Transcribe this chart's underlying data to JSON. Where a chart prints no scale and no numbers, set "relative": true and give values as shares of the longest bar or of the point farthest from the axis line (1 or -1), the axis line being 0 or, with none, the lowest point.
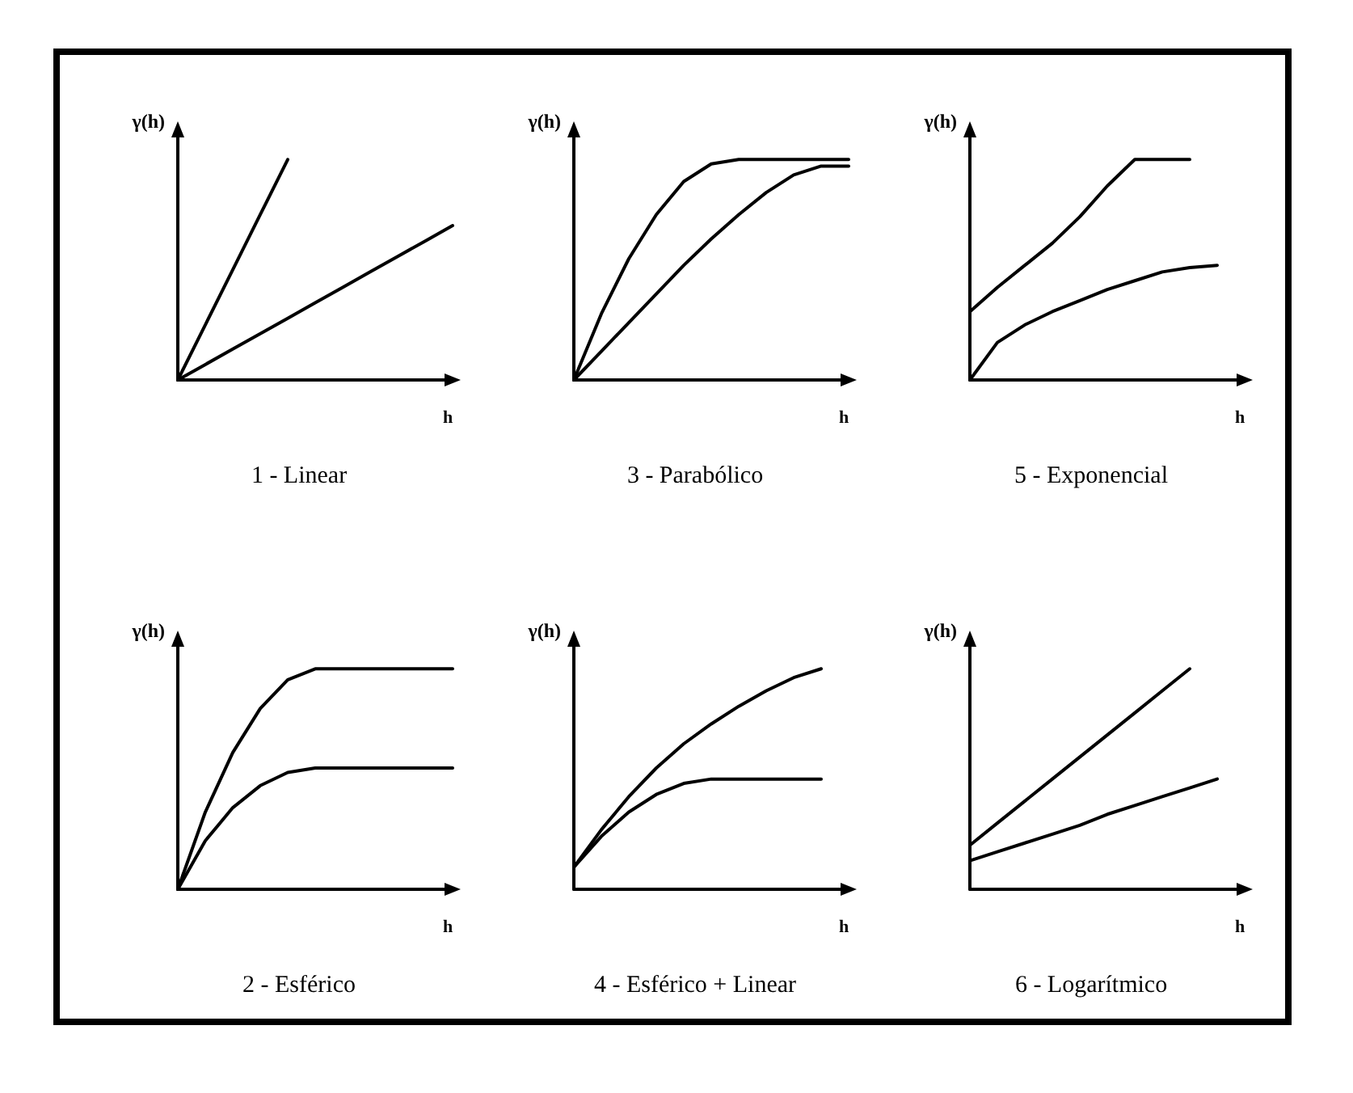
{
  "chart_data": [
    {
      "type": "line",
      "title": "1 - Linear",
      "xlabel": "h",
      "ylabel": "γ(h)",
      "relative": true,
      "marker": "none",
      "line_style": "solid",
      "categories": [
        null,
        null,
        null,
        null,
        null,
        null,
        null,
        null,
        null,
        null,
        null
      ],
      "series": [
        {
          "color": "#000000",
          "values": [
            0,
            0.25,
            0.5,
            0.75,
            1,
            null,
            null,
            null,
            null,
            null,
            null
          ]
        },
        {
          "color": "#000000",
          "values": [
            0,
            0.07,
            0.14,
            0.21,
            0.28,
            0.35,
            0.42,
            0.49,
            0.56,
            0.63,
            0.7
          ]
        }
      ]
    },
    {
      "type": "line",
      "title": "3 - Parabólico",
      "xlabel": "h",
      "ylabel": "γ(h)",
      "relative": true,
      "marker": "none",
      "line_style": "solid",
      "categories": [
        null,
        null,
        null,
        null,
        null,
        null,
        null,
        null,
        null,
        null,
        null
      ],
      "series": [
        {
          "color": "#000000",
          "values": [
            0,
            0.3,
            0.55,
            0.75,
            0.9,
            0.98,
            1,
            1,
            1,
            1,
            1
          ]
        },
        {
          "color": "#000000",
          "values": [
            0,
            0.13,
            0.26,
            0.39,
            0.52,
            0.64,
            0.75,
            0.85,
            0.93,
            0.97,
            0.97
          ]
        }
      ]
    },
    {
      "type": "line",
      "title": "5 - Exponencial",
      "xlabel": "h",
      "ylabel": "γ(h)",
      "relative": true,
      "marker": "none",
      "line_style": "solid",
      "categories": [
        null,
        null,
        null,
        null,
        null,
        null,
        null,
        null,
        null,
        null,
        null
      ],
      "series": [
        {
          "color": "#000000",
          "values": [
            0.31,
            0.42,
            0.52,
            0.62,
            0.74,
            0.88,
            1,
            1,
            1,
            null,
            null
          ]
        },
        {
          "color": "#000000",
          "values": [
            0,
            0.17,
            0.25,
            0.31,
            0.36,
            0.41,
            0.45,
            0.49,
            0.51,
            0.52,
            null
          ]
        }
      ]
    },
    {
      "type": "line",
      "title": "2 - Esférico",
      "xlabel": "h",
      "ylabel": "γ(h)",
      "relative": true,
      "marker": "none",
      "line_style": "solid",
      "categories": [
        null,
        null,
        null,
        null,
        null,
        null,
        null,
        null,
        null,
        null,
        null
      ],
      "series": [
        {
          "color": "#000000",
          "values": [
            0,
            0.35,
            0.62,
            0.82,
            0.95,
            1,
            1,
            1,
            1,
            1,
            1
          ]
        },
        {
          "color": "#000000",
          "values": [
            0,
            0.22,
            0.37,
            0.47,
            0.53,
            0.55,
            0.55,
            0.55,
            0.55,
            0.55,
            0.55
          ]
        }
      ]
    },
    {
      "type": "line",
      "title": "4 - Esférico + Linear",
      "xlabel": "h",
      "ylabel": "γ(h)",
      "relative": true,
      "marker": "none",
      "line_style": "solid",
      "categories": [
        null,
        null,
        null,
        null,
        null,
        null,
        null,
        null,
        null,
        null,
        null
      ],
      "series": [
        {
          "color": "#000000",
          "values": [
            0.1,
            0.27,
            0.42,
            0.55,
            0.66,
            0.75,
            0.83,
            0.9,
            0.96,
            1,
            null
          ]
        },
        {
          "color": "#000000",
          "values": [
            0.1,
            0.24,
            0.35,
            0.43,
            0.48,
            0.5,
            0.5,
            0.5,
            0.5,
            0.5,
            null
          ]
        }
      ]
    },
    {
      "type": "line",
      "title": "6 - Logarítmico",
      "xlabel": "h",
      "ylabel": "γ(h)",
      "relative": true,
      "marker": "none",
      "line_style": "solid",
      "categories": [
        null,
        null,
        null,
        null,
        null,
        null,
        null,
        null,
        null,
        null,
        null
      ],
      "series": [
        {
          "color": "#000000",
          "values": [
            0.2,
            0.3,
            0.4,
            0.5,
            0.6,
            0.7,
            0.8,
            0.9,
            1,
            null,
            null
          ]
        },
        {
          "color": "#000000",
          "values": [
            0.13,
            0.17,
            0.21,
            0.25,
            0.29,
            0.34,
            0.38,
            0.42,
            0.46,
            0.5,
            null
          ]
        }
      ]
    }
  ]
}
